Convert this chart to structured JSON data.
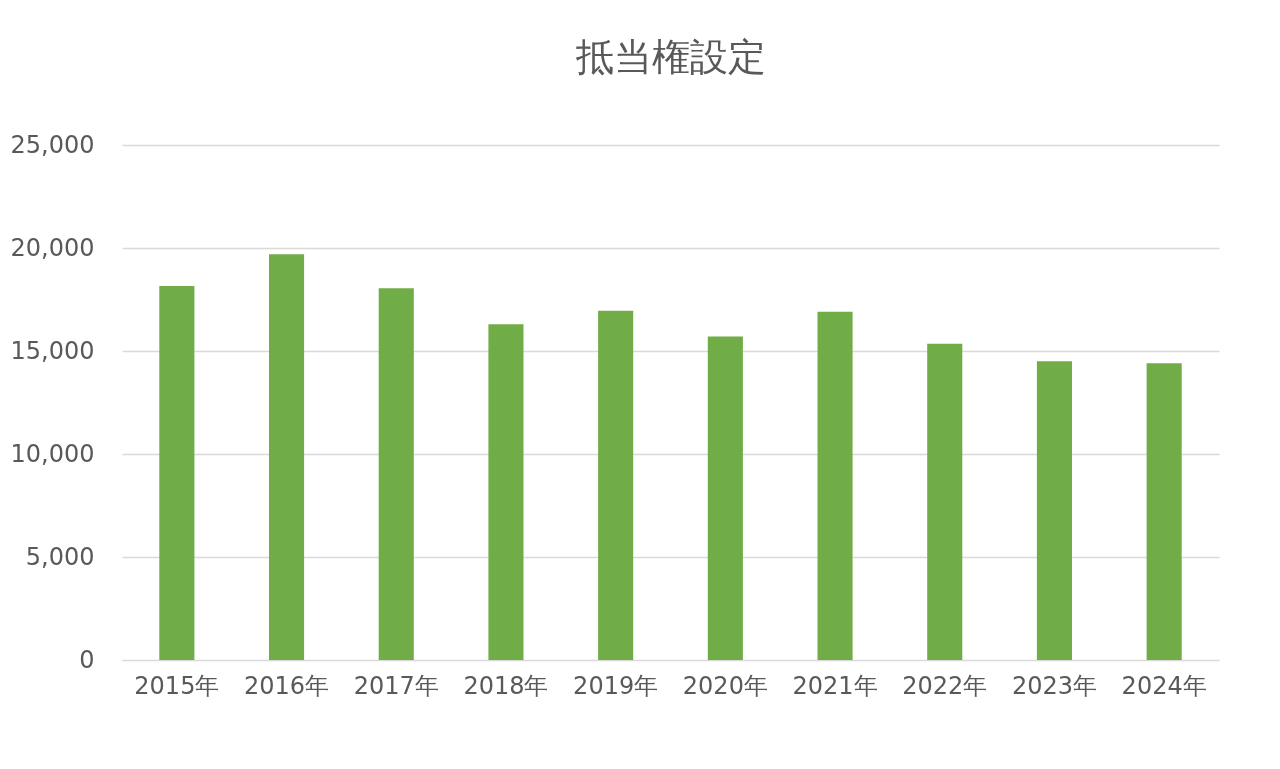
{
  "chart_data": {
    "type": "bar",
    "title": "抵当権設定",
    "categories": [
      "2015年",
      "2016年",
      "2017年",
      "2018年",
      "2019年",
      "2020年",
      "2021年",
      "2022年",
      "2023年",
      "2024年"
    ],
    "values": [
      18150,
      19700,
      18050,
      16300,
      16950,
      15700,
      16900,
      15350,
      14500,
      14400
    ],
    "color": "#70ad47",
    "ylim": [
      0,
      25000
    ],
    "yticks": [
      {
        "value": 0,
        "label": "0"
      },
      {
        "value": 5000,
        "label": "5,000"
      },
      {
        "value": 10000,
        "label": "10,000"
      },
      {
        "value": 15000,
        "label": "15,000"
      },
      {
        "value": 20000,
        "label": "20,000"
      },
      {
        "value": 25000,
        "label": "25,000"
      }
    ],
    "grid": "y"
  }
}
